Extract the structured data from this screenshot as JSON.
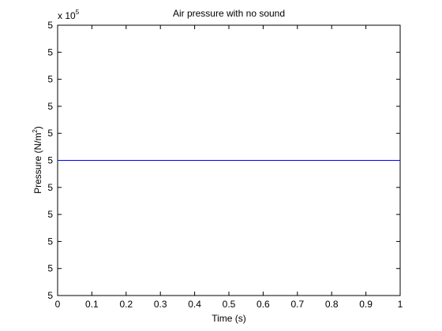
{
  "chart_data": {
    "type": "line",
    "title": "Air pressure with no sound",
    "xlabel": "Time (s)",
    "ylabel": {
      "text": "Pressure (N/m",
      "sup": "2",
      "end": ")"
    },
    "y_multiplier": {
      "base": "x 10",
      "exponent": "5"
    },
    "x": [
      0,
      1
    ],
    "series": [
      {
        "color": "#0000ff",
        "values": [
          500000,
          500000
        ]
      }
    ],
    "xlim": [
      0,
      1
    ],
    "xticks": [
      0,
      0.1,
      0.2,
      0.3,
      0.4,
      0.5,
      0.6,
      0.7,
      0.8,
      0.9,
      1
    ],
    "ylim": [
      499999.5,
      500000.5
    ],
    "yticks": [
      {
        "value": 499999.5,
        "label": "5"
      },
      {
        "value": 499999.6,
        "label": "5"
      },
      {
        "value": 499999.7,
        "label": "5"
      },
      {
        "value": 499999.8,
        "label": "5"
      },
      {
        "value": 499999.9,
        "label": "5"
      },
      {
        "value": 500000,
        "label": "5"
      },
      {
        "value": 500000.1,
        "label": "5"
      },
      {
        "value": 500000.2,
        "label": "5"
      },
      {
        "value": 500000.3,
        "label": "5"
      },
      {
        "value": 500000.4,
        "label": "5"
      },
      {
        "value": 500000.5,
        "label": "5"
      }
    ],
    "grid": false
  }
}
